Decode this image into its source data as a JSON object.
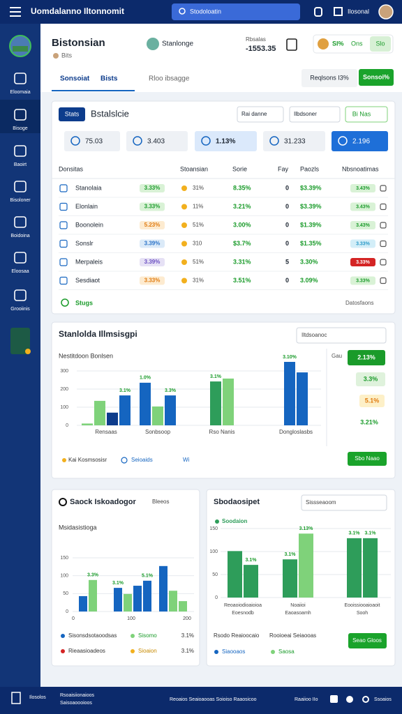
{
  "topbar": {
    "title": "Uomdalanno Iltonnomit",
    "search": "Stodoloatin",
    "user": "Ilosonal"
  },
  "sidebar": [
    "Eloomaia",
    "Bisoge",
    "Baoirt",
    "Bisoloner",
    "Boidoina",
    "Eloosaa",
    "Grooiinis"
  ],
  "header": {
    "title": "Bistonsian",
    "subtitle": "Bits",
    "contact": "Stanlonge",
    "stat_label": "Rbsalas",
    "stat_value": "-1553.35",
    "badge_pct": "Sl%",
    "badge_text": "Ons",
    "badge_btn": "Slo",
    "tabs": [
      "Sonsoiat",
      "Bists",
      "Rloo ibsagge"
    ],
    "requests": "Reqlsons I3%",
    "action": "Sonsoi%"
  },
  "summary": {
    "tab": "Stats",
    "title": "Bstalslcie",
    "filters": [
      "Rai danne",
      "Ilbdsoner"
    ],
    "filter_btn": "Bi Nas",
    "tiles": [
      "75.03",
      "3.403",
      "1.13%",
      "31.233",
      "2.196"
    ],
    "columns": [
      "Donsitas",
      "Stoansian",
      "Sorie",
      "Fay",
      "Paozls",
      "Nbsnoatimas"
    ],
    "rows": [
      {
        "name": "Stanolaia",
        "change": "3.33%",
        "change_tone": "green",
        "share": "31%",
        "score": "8.35%",
        "fay": "0",
        "price": "$3.39%",
        "status": "3.43%",
        "status_tone": "green"
      },
      {
        "name": "Elonlain",
        "change": "3.33%",
        "change_tone": "green",
        "share": "11%",
        "score": "3.21%",
        "fay": "0",
        "price": "$3.39%",
        "status": "3.43%",
        "status_tone": "green"
      },
      {
        "name": "Boonolein",
        "change": "5.23%",
        "change_tone": "orange",
        "share": "51%",
        "score": "3.00%",
        "fay": "0",
        "price": "$1.39%",
        "status": "3.43%",
        "status_tone": "green"
      },
      {
        "name": "Sonslr",
        "change": "3.39%",
        "change_tone": "blue",
        "share": "310",
        "score": "$3.7%",
        "fay": "0",
        "price": "$1.35%",
        "status": "3.33%",
        "status_tone": "lightblue"
      },
      {
        "name": "Merpaleis",
        "change": "3.39%",
        "change_tone": "purple",
        "share": "51%",
        "score": "3.31%",
        "fay": "5",
        "price": "3.30%",
        "status": "3.33%",
        "status_tone": "red"
      },
      {
        "name": "Sesdiaot",
        "change": "3.33%",
        "change_tone": "orange",
        "share": "31%",
        "score": "3.51%",
        "fay": "0",
        "price": "3.09%",
        "status": "3.33%",
        "status_tone": "green"
      }
    ],
    "footer_left": "Stugs",
    "footer_right": "Datosfaons"
  },
  "main_chart": {
    "title": "Stanlolda Illmsisgpi",
    "dropdown": "Iltdsoanoc",
    "subtitle": "Nestitdoon Bonlsen",
    "ylim": [
      0,
      350
    ],
    "yticks": [
      0,
      100,
      200,
      300
    ],
    "groups": [
      {
        "label": "Rensaas",
        "bars": [
          {
            "value": 10,
            "tone": "lightgreen"
          },
          {
            "value": 135,
            "tone": "lightgreen"
          },
          {
            "value": 70,
            "tone": "navy"
          },
          {
            "value": 165,
            "tone": "blue",
            "label": "3.1%"
          }
        ]
      },
      {
        "label": "Sonbsoop",
        "bars": [
          {
            "value": 235,
            "tone": "blue",
            "label": "1.0%"
          },
          {
            "value": 104,
            "tone": "lightgreen"
          },
          {
            "value": 165,
            "tone": "blue",
            "label": "3.3%"
          }
        ]
      },
      {
        "label": "Rso Nanis",
        "bars": [
          {
            "value": 242,
            "tone": "green",
            "label": "3.1%"
          },
          {
            "value": 258,
            "tone": "lightgreen"
          }
        ]
      },
      {
        "label": "Dongloslasbs",
        "bars": [
          {
            "value": 350,
            "tone": "blue",
            "label": "3.10%"
          },
          {
            "value": 292,
            "tone": "blue"
          }
        ]
      }
    ],
    "side_label": "Gau",
    "side_pills": [
      "2.13%",
      "3.3%",
      "5.1%",
      "3.21%"
    ],
    "footer": [
      "Kai Kosmsosisr",
      "Seioaids",
      "Wi"
    ],
    "button": "Sbo Naao"
  },
  "left_chart": {
    "title": "Saock Iskoadogor",
    "dropdown": "Bleeos",
    "subtitle": "Msidasistioga",
    "ylim": [
      0,
      150
    ],
    "yticks": [
      0,
      50,
      100,
      150
    ],
    "groups": [
      {
        "label": "0",
        "bars": [
          {
            "value": 43,
            "tone": "blue"
          },
          {
            "value": 88,
            "tone": "lightgreen",
            "label": "3.3%"
          }
        ]
      },
      {
        "label": "100",
        "bars": [
          {
            "value": 66,
            "tone": "blue",
            "label": "3.1%"
          },
          {
            "value": 49,
            "tone": "lightgreen"
          },
          {
            "value": 72,
            "tone": "blue"
          },
          {
            "value": 86,
            "tone": "blue",
            "label": "5.1%"
          }
        ]
      },
      {
        "label": "200",
        "bars": [
          {
            "value": 127,
            "tone": "blue"
          },
          {
            "value": 58,
            "tone": "lightgreen"
          },
          {
            "value": 29,
            "tone": "lightgreen"
          }
        ]
      }
    ],
    "legend": [
      {
        "name": "Sisonsdsotaoodsas",
        "tone": "blue"
      },
      {
        "name": "Sisomo",
        "tone": "lightgreen"
      },
      {
        "name": "3.1%"
      },
      {
        "name": "Rieaasioadeos",
        "tone": "red"
      },
      {
        "name": "Sioaion",
        "tone": "yellow"
      },
      {
        "name": "3.1%"
      }
    ]
  },
  "right_chart": {
    "title": "Sbodaosipet",
    "dropdown": "Sissseaoom",
    "legend_top": "Soodaion",
    "ylim": [
      0,
      150
    ],
    "yticks": [
      0,
      50,
      100,
      150
    ],
    "groups": [
      {
        "label": [
          "Reoaoiodioaioioa",
          "Eoesnodb"
        ],
        "bars": [
          {
            "value": 101,
            "tone": "green"
          },
          {
            "value": 71,
            "tone": "green",
            "label": "3.1%"
          }
        ]
      },
      {
        "label": [
          "Noaiioi",
          "Eaoasoamh"
        ],
        "bars": [
          {
            "value": 83,
            "tone": "green",
            "label": "3.1%"
          },
          {
            "value": 139,
            "tone": "lightgreen",
            "label": "3.13%"
          }
        ]
      },
      {
        "label": [
          "Eooissiooaioaoit",
          "Sooh"
        ],
        "bars": [
          {
            "value": 129,
            "tone": "green",
            "label": "3.1%"
          },
          {
            "value": 129,
            "tone": "green",
            "label": "3.1%"
          }
        ]
      }
    ],
    "footer": [
      "Rsodo Reaioocaio",
      "Rooioeai Seiaooas"
    ],
    "legend": [
      {
        "name": "Siaooaos",
        "tone": "blue"
      },
      {
        "name": "Saosa",
        "tone": "lightgreen"
      }
    ],
    "button": "Seao Gloos"
  },
  "bottombar": [
    "Ilosolos",
    "Rsoaisiionaioos",
    "Saisoaoooioos",
    "Reoaios Seaioaooas Soioiso Raaosicoo",
    "Raaiioo IIo",
    "Ssoaios"
  ]
}
